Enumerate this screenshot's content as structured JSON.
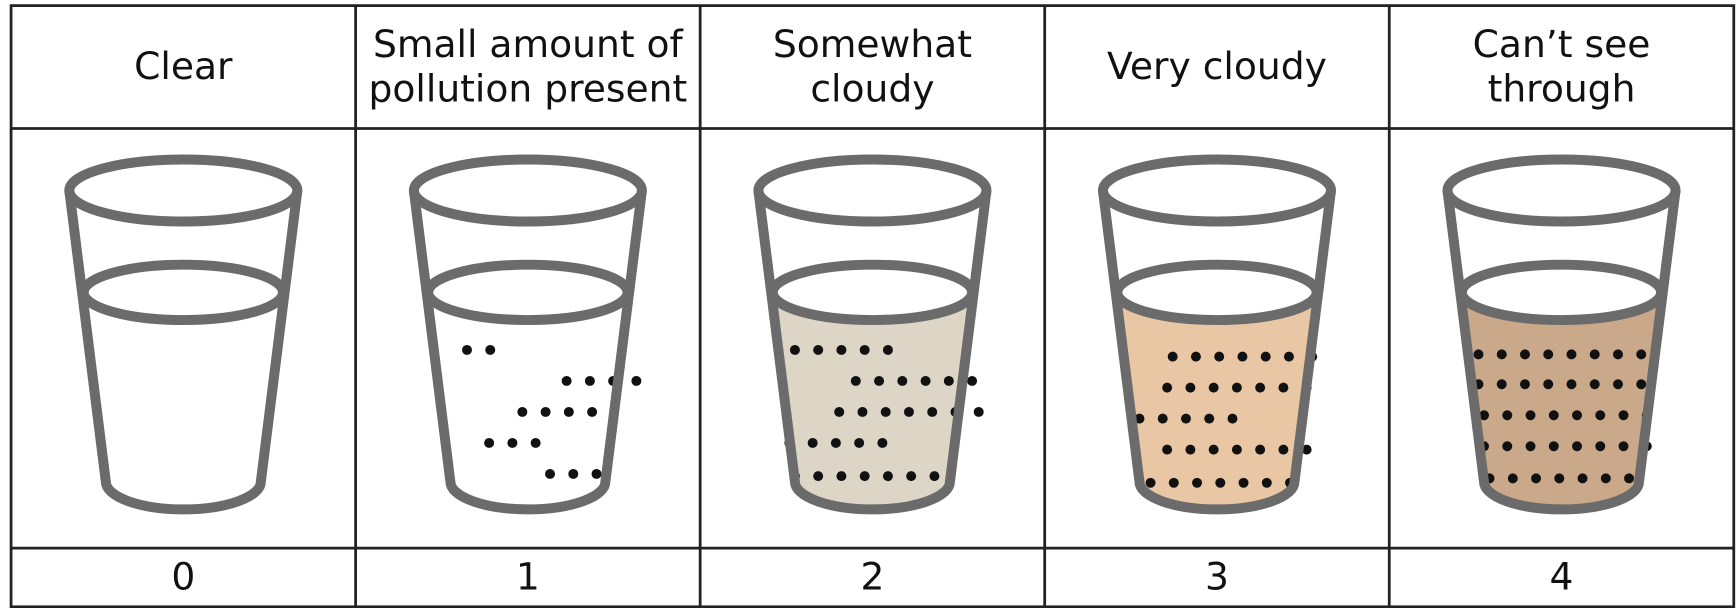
{
  "columns": [
    {
      "label": [
        "Clear"
      ],
      "score": 0
    },
    {
      "label": [
        "Small amount of",
        "pollution present"
      ],
      "score": 1
    },
    {
      "label": [
        "Somewhat",
        "cloudy"
      ],
      "score": 2
    },
    {
      "label": [
        "Very cloudy"
      ],
      "score": 3
    },
    {
      "label": [
        "Can’t see",
        "through"
      ],
      "score": 4
    }
  ]
}
